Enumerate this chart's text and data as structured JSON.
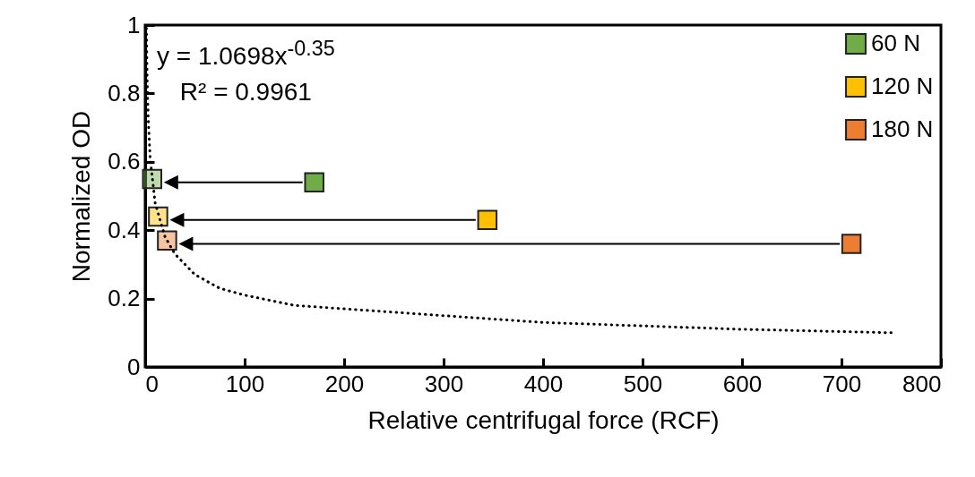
{
  "chart_data": {
    "type": "scatter",
    "xlabel": "Relative centrifugal force (RCF)",
    "ylabel": "Normalized OD",
    "xlim": [
      0,
      800
    ],
    "xticks": [
      0,
      100,
      200,
      300,
      400,
      500,
      600,
      700,
      800
    ],
    "ylim": [
      0,
      1
    ],
    "yticks": [
      0,
      0.2,
      0.4,
      0.6,
      0.8,
      1
    ],
    "grid": false,
    "legend": "top right",
    "marker": "square",
    "annotations": [
      "y = 1.0698x$^{-0.35}$",
      "R² = 0.9961"
    ],
    "series": [
      {
        "name": "60 N",
        "color": "#70ad47",
        "x": [
          170
        ],
        "values": [
          0.54
        ]
      },
      {
        "name": "120 N",
        "color": "#ffc000",
        "x": [
          344
        ],
        "values": [
          0.43
        ]
      },
      {
        "name": "180 N",
        "color": "#ed7d31",
        "x": [
          710
        ],
        "values": [
          0.36
        ]
      },
      {
        "color": "#70ad47",
        "x": [
          7
        ],
        "values": [
          0.55
        ]
      },
      {
        "color": "#ffc000",
        "x": [
          13
        ],
        "values": [
          0.44
        ]
      },
      {
        "color": "#ed7d31",
        "x": [
          22
        ],
        "values": [
          0.37
        ]
      },
      {
        "type": "line",
        "color": "#000000",
        "line_style": "dotted",
        "marker": "none",
        "x": [
          1.25,
          2,
          3,
          5,
          10,
          20,
          30,
          50,
          75,
          100,
          150,
          200,
          300,
          400,
          500,
          600,
          750
        ],
        "values": [
          0.99,
          0.84,
          0.73,
          0.61,
          0.48,
          0.38,
          0.33,
          0.27,
          0.23,
          0.21,
          0.18,
          0.17,
          0.15,
          0.13,
          0.12,
          0.11,
          0.1
        ]
      }
    ]
  }
}
